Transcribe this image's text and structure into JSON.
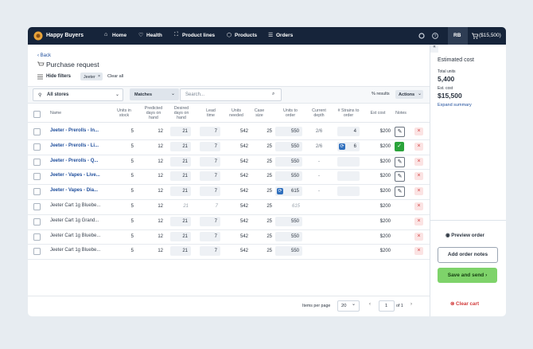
{
  "nav": {
    "brand": "Happy Buyers",
    "items": [
      "Home",
      "Health",
      "Product lines",
      "Products",
      "Orders"
    ],
    "avatar": "RB",
    "cart": "($15,500)"
  },
  "header": {
    "back": "Back",
    "title": "Purchase request",
    "hide_filters": "Hide filters",
    "chip": "Jeeter",
    "clear_all": "Clear all"
  },
  "filters": {
    "store": "All stores",
    "match": "Matches",
    "search_placeholder": "Search...",
    "results": "% results",
    "actions": "Actions"
  },
  "table": {
    "columns": [
      "Name",
      "Units in stock",
      "Predicted days on hand",
      "Desired days on hand",
      "Lead time",
      "Units needed",
      "Case size",
      "Units to order",
      "Current depth",
      "# Strains to order",
      "Est cost",
      "Notes"
    ],
    "rows": [
      {
        "name": "Jeeter - Prerolls - In...",
        "link": true,
        "stock": "5",
        "predicted": "12",
        "desired": "21",
        "lead": "7",
        "needed": "542",
        "case": "25",
        "order": "550",
        "depth": "2/6",
        "strains": "4",
        "cost": "$200",
        "notes": "edit"
      },
      {
        "name": "Jeeter - Prerolls - Li...",
        "link": true,
        "stock": "5",
        "predicted": "12",
        "desired": "21",
        "lead": "7",
        "needed": "542",
        "case": "25",
        "order": "550",
        "depth": "2/6",
        "strains": "6",
        "strains_synced": true,
        "cost": "$200",
        "notes": "done"
      },
      {
        "name": "Jeeter - Prerolls - Q...",
        "link": true,
        "stock": "5",
        "predicted": "12",
        "desired": "21",
        "lead": "7",
        "needed": "542",
        "case": "25",
        "order": "550",
        "depth": "-",
        "strains_box": true,
        "cost": "$200",
        "notes": "edit"
      },
      {
        "name": "Jeeter - Vapes - Live...",
        "link": true,
        "stock": "5",
        "predicted": "12",
        "desired": "21",
        "lead": "7",
        "needed": "542",
        "case": "25",
        "order": "550",
        "depth": "-",
        "strains_box": true,
        "cost": "$200",
        "notes": "edit"
      },
      {
        "name": "Jeeter - Vapes - Dia...",
        "link": true,
        "stock": "5",
        "predicted": "12",
        "desired": "21",
        "lead": "7",
        "needed": "542",
        "case": "25",
        "order": "615",
        "order_synced": true,
        "depth": "-",
        "strains_box": true,
        "cost": "$200",
        "notes": "edit"
      },
      {
        "name": "Jeeter Cart 1g Bluebe...",
        "stock": "5",
        "predicted": "12",
        "desired": "21",
        "lead": "7",
        "plain": true,
        "needed": "542",
        "case": "25",
        "order": "615",
        "order_synced": true,
        "cost": "$200"
      },
      {
        "name": "Jeeter Cart 1g Grand...",
        "stock": "5",
        "predicted": "12",
        "desired": "21",
        "lead": "7",
        "needed": "542",
        "case": "25",
        "order": "550",
        "cost": "$200"
      },
      {
        "name": "Jeeter Cart 1g Bluebe...",
        "stock": "5",
        "predicted": "12",
        "desired": "21",
        "lead": "7",
        "needed": "542",
        "case": "25",
        "order": "550",
        "cost": "$200"
      },
      {
        "name": "Jeeter Cart 1g Bluebe...",
        "stock": "5",
        "predicted": "12",
        "desired": "21",
        "lead": "7",
        "needed": "542",
        "case": "25",
        "order": "550",
        "cost": "$200"
      }
    ]
  },
  "pagination": {
    "label": "Items per page",
    "per_page": "20",
    "page": "1",
    "of": "of 1"
  },
  "summary": {
    "title": "Estimated cost",
    "units_label": "Total units",
    "units": "5,400",
    "cost_label": "Est. cost",
    "cost": "$15,500",
    "expand": "Expand summary",
    "preview": "Preview order",
    "add_notes": "Add order notes",
    "save": "Save and send",
    "clear": "Clear cart"
  }
}
